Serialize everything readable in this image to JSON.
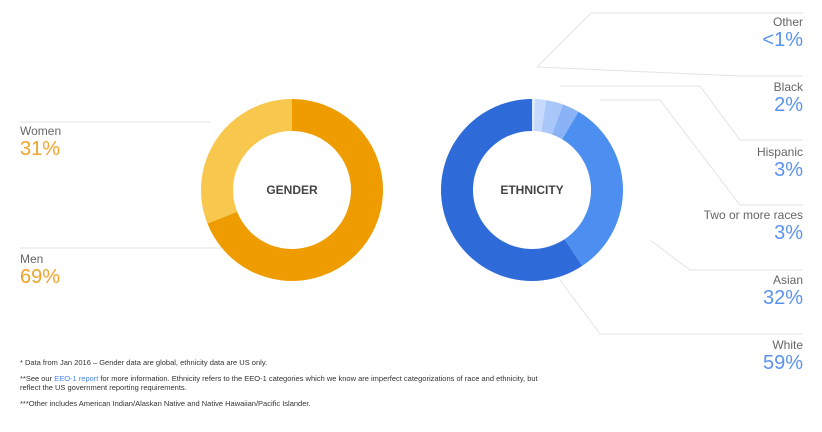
{
  "colors": {
    "women": "#f8c84e",
    "men": "#ef9c00",
    "white": "#2e6ad8",
    "asian": "#4c8ff0",
    "two_or_more": "#8ab3f5",
    "hispanic": "#a9c7f8",
    "black": "#c6dafb",
    "other": "#dde9fd",
    "pct_orange": "#f0a32a",
    "pct_blue": "#5a93ee"
  },
  "chart_data": [
    {
      "type": "pie",
      "title": "GENDER",
      "slices": [
        {
          "label": "Women",
          "value": 31,
          "display": "31%"
        },
        {
          "label": "Men",
          "value": 69,
          "display": "69%"
        }
      ]
    },
    {
      "type": "pie",
      "title": "ETHNICITY",
      "slices": [
        {
          "label": "Other",
          "value": 0.5,
          "display": "<1%"
        },
        {
          "label": "Black",
          "value": 2,
          "display": "2%"
        },
        {
          "label": "Hispanic",
          "value": 3,
          "display": "3%"
        },
        {
          "label": "Two or more races",
          "value": 3,
          "display": "3%"
        },
        {
          "label": "Asian",
          "value": 32,
          "display": "32%"
        },
        {
          "label": "White",
          "value": 59,
          "display": "59%"
        }
      ]
    }
  ],
  "footnotes": {
    "note1": "* Data from Jan 2016 – Gender data are global, ethnicity data are US only.",
    "note2_prefix": "**See our ",
    "note2_link": "EEO-1 report",
    "note2_suffix": " for more information. Ethnicity refers to the EEO-1 categories which we know are imperfect categorizations of race and ethnicity, but reflect the US government reporting requirements.",
    "note3": "***Other includes American Indian/Alaskan Native and Native Hawaiian/Pacific Islander."
  }
}
